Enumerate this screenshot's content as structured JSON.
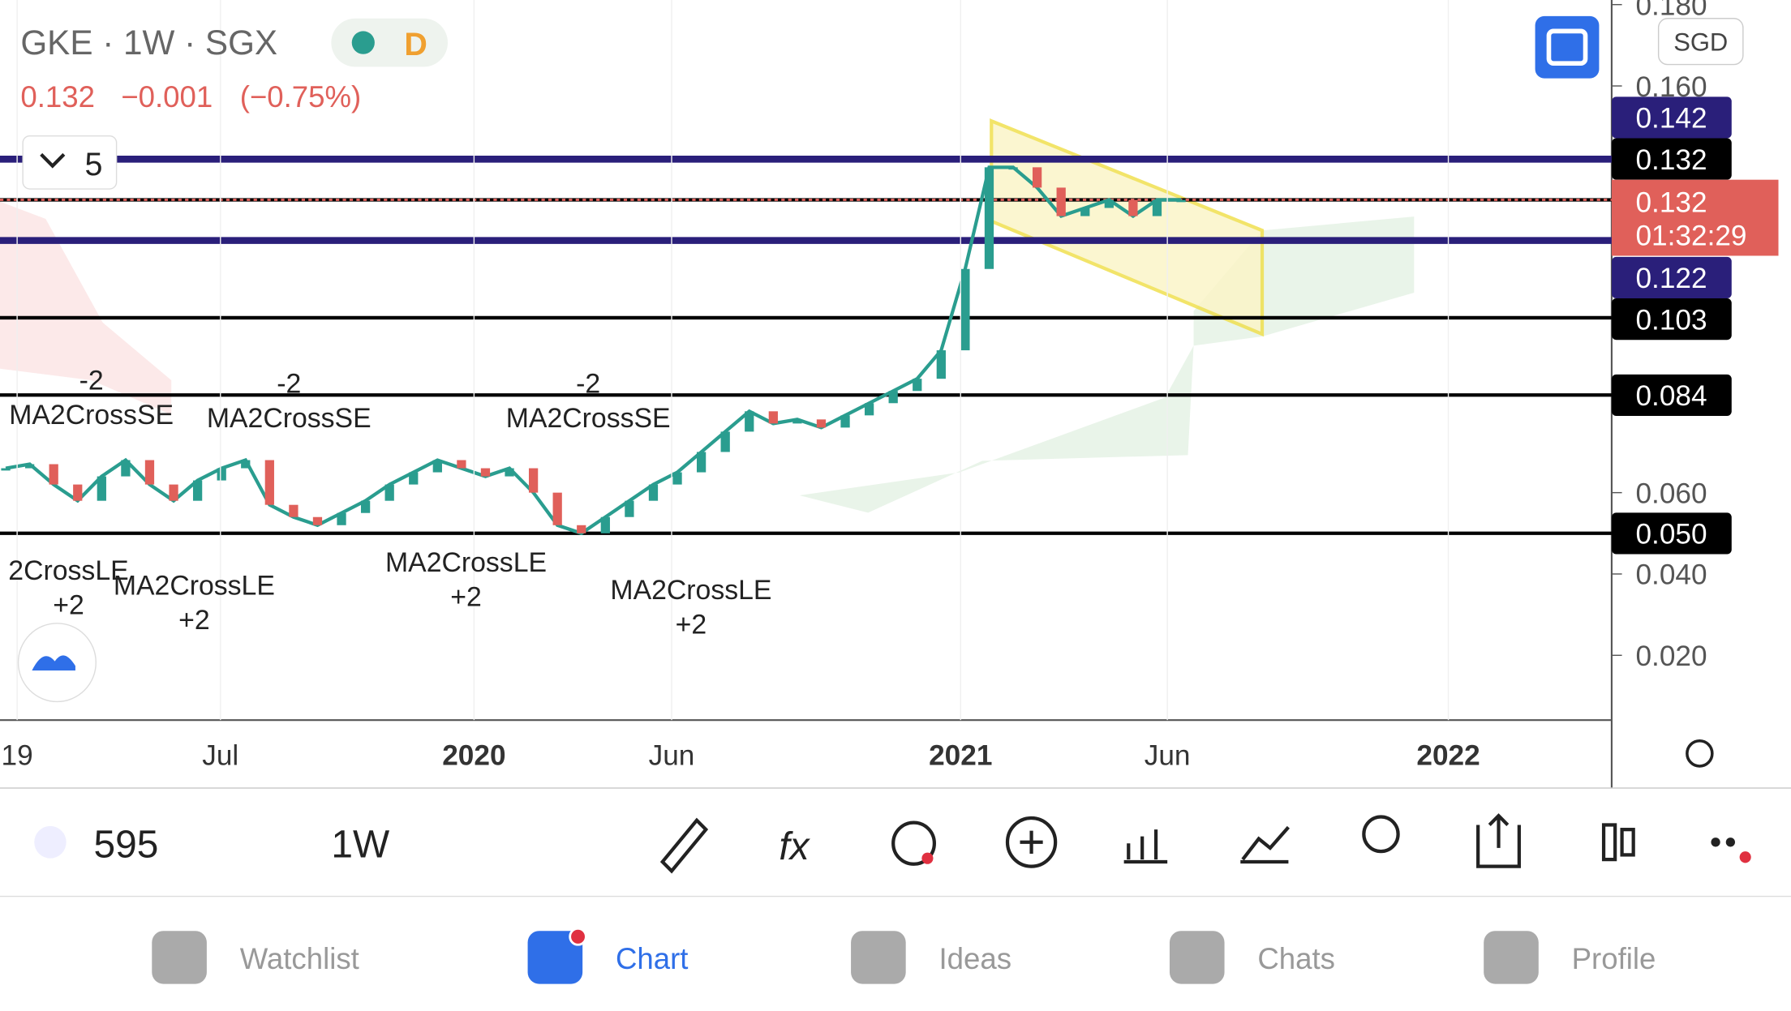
{
  "header": {
    "symbol": "GKE · 1W · SGX",
    "badge": "D",
    "price": "0.132",
    "change": "−0.001",
    "change_pct": "(−0.75%)",
    "indicator_count": "5",
    "currency": "SGD"
  },
  "chart_data": {
    "type": "line",
    "series": [
      {
        "name": "close",
        "color": "#2a9d8f",
        "values": [
          0.066,
          0.067,
          0.062,
          0.058,
          0.064,
          0.068,
          0.062,
          0.058,
          0.063,
          0.066,
          0.068,
          0.057,
          0.054,
          0.052,
          0.055,
          0.058,
          0.062,
          0.065,
          0.068,
          0.066,
          0.064,
          0.066,
          0.06,
          0.052,
          0.05,
          0.054,
          0.058,
          0.062,
          0.065,
          0.07,
          0.075,
          0.08,
          0.077,
          0.078,
          0.076,
          0.079,
          0.082,
          0.085,
          0.088,
          0.095,
          0.115,
          0.14,
          0.14,
          0.135,
          0.128,
          0.13,
          0.132,
          0.128,
          0.132,
          0.132
        ]
      }
    ],
    "ylim": [
      0.0,
      0.18
    ],
    "yticks": [
      {
        "value": 0.18,
        "label": "0.180"
      },
      {
        "value": 0.16,
        "label": "0.160"
      },
      {
        "value": 0.06,
        "label": "0.060"
      },
      {
        "value": 0.04,
        "label": "0.040"
      },
      {
        "value": 0.02,
        "label": "0.020"
      }
    ],
    "levels": [
      {
        "value": 0.142,
        "label": "0.142",
        "color": "#2a1f7a"
      },
      {
        "value": 0.132,
        "label": "0.132",
        "color": "#000000"
      },
      {
        "value": 0.122,
        "label": "0.122",
        "color": "#2a1f7a"
      },
      {
        "value": 0.103,
        "label": "0.103",
        "color": "#000000"
      },
      {
        "value": 0.084,
        "label": "0.084",
        "color": "#000000"
      },
      {
        "value": 0.05,
        "label": "0.050",
        "color": "#000000"
      }
    ],
    "current": {
      "value": 0.132,
      "label": "0.132",
      "countdown": "01:32:29",
      "color": "#e0605a"
    },
    "x_labels": [
      "19",
      "Jul",
      "2020",
      "Jun",
      "2021",
      "Jun",
      "2022"
    ],
    "annotations": [
      {
        "label": "MA2CrossSE",
        "qty": "-2"
      },
      {
        "label": "MA2CrossSE",
        "qty": "-2"
      },
      {
        "label": "MA2CrossSE",
        "qty": "-2"
      },
      {
        "label": "2CrossLE",
        "qty": "+2"
      },
      {
        "label": "MA2CrossLE",
        "qty": "+2"
      },
      {
        "label": "MA2CrossLE",
        "qty": "+2"
      },
      {
        "label": "MA2CrossLE",
        "qty": "+2"
      }
    ]
  },
  "toolbar": {
    "count": "595",
    "interval": "1W"
  },
  "tabs": [
    "Watchlist",
    "Chart",
    "Ideas",
    "Chats",
    "Profile"
  ]
}
